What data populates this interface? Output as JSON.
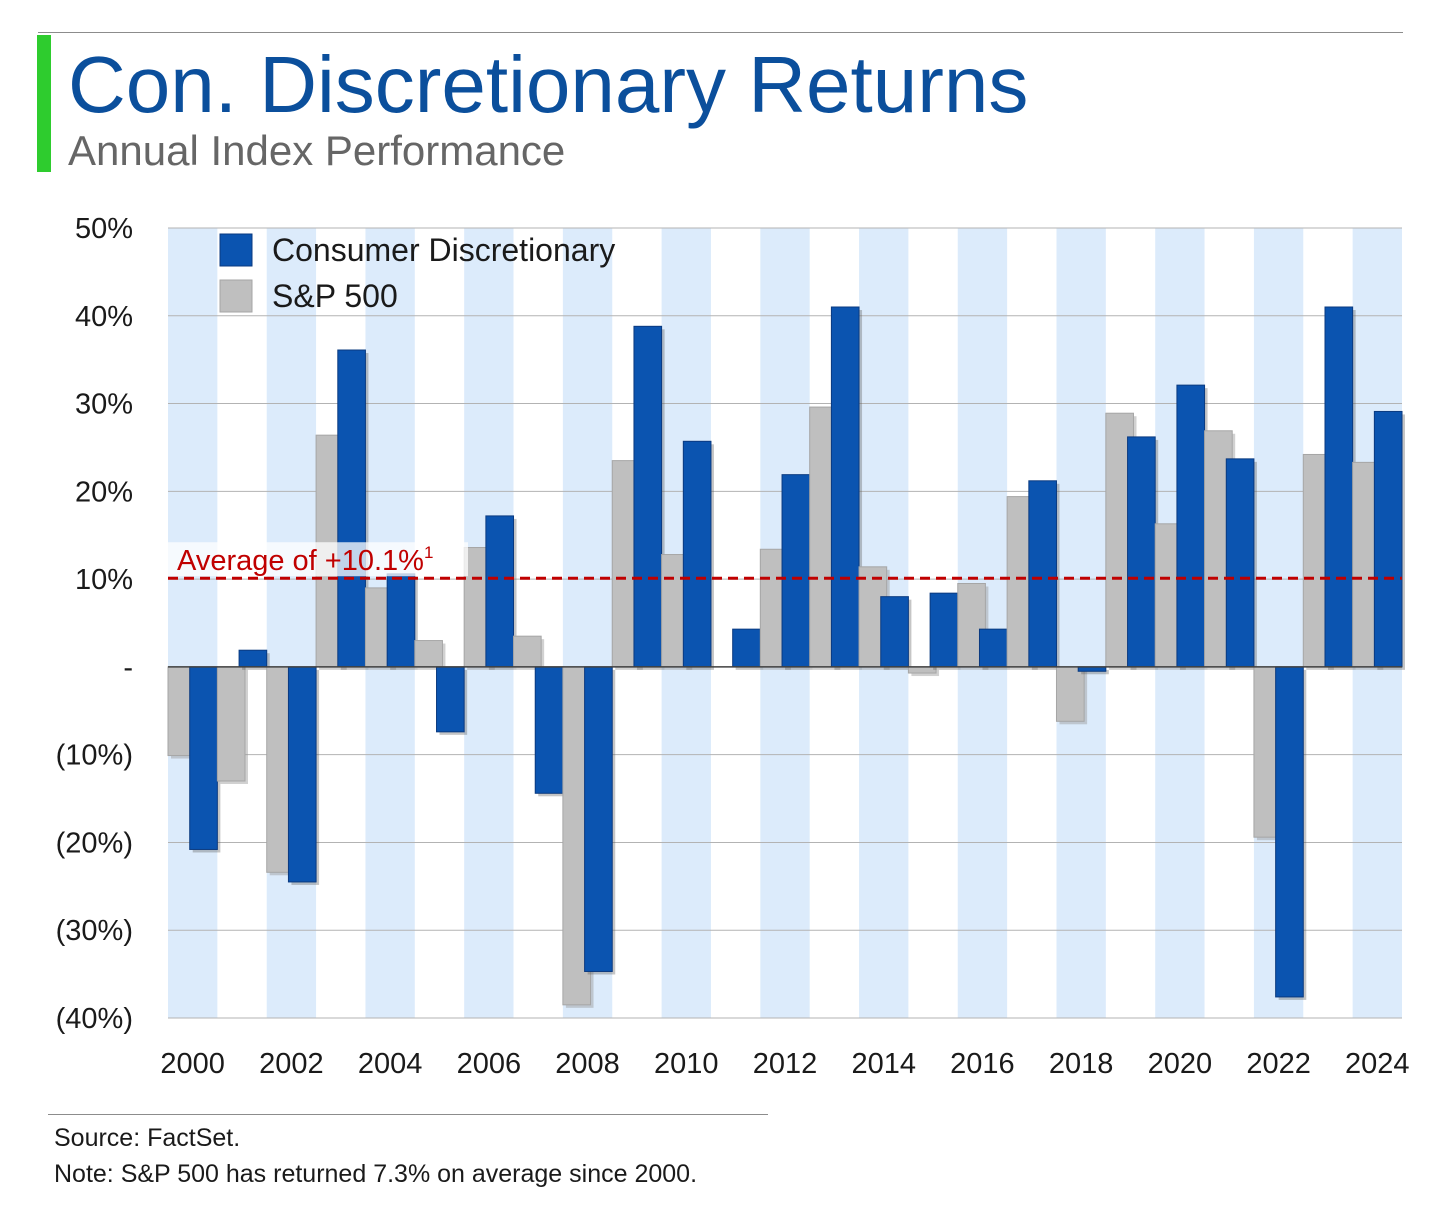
{
  "header": {
    "title": "Con. Discretionary Returns",
    "subtitle": "Annual Index Performance"
  },
  "colors": {
    "accent_bar": "#2ecc2e",
    "title": "#0b4f9c",
    "consumer_discretionary": "#0b54b0",
    "sp500": "#bfbfbf",
    "band": "#dcebfb",
    "average_line": "#c00000"
  },
  "chart_data": {
    "type": "bar",
    "categories": [
      "2000",
      "2001",
      "2002",
      "2003",
      "2004",
      "2005",
      "2006",
      "2007",
      "2008",
      "2009",
      "2010",
      "2011",
      "2012",
      "2013",
      "2014",
      "2015",
      "2016",
      "2017",
      "2018",
      "2019",
      "2020",
      "2021",
      "2022",
      "2023",
      "2024"
    ],
    "x_tick_labels": [
      "2000",
      "",
      "2002",
      "",
      "2004",
      "",
      "2006",
      "",
      "2008",
      "",
      "2010",
      "",
      "2012",
      "",
      "2014",
      "",
      "2016",
      "",
      "2018",
      "",
      "2020",
      "",
      "2022",
      "",
      "2024"
    ],
    "series": [
      {
        "name": "S&P 500",
        "values": [
          -10.1,
          -13.0,
          -23.4,
          26.4,
          9.0,
          3.0,
          13.6,
          3.5,
          -38.5,
          23.5,
          12.8,
          0.0,
          13.4,
          29.6,
          11.4,
          -0.7,
          9.5,
          19.4,
          -6.2,
          28.9,
          16.3,
          26.9,
          -19.4,
          24.2,
          23.3
        ]
      },
      {
        "name": "Consumer Discretionary",
        "values": [
          -20.8,
          1.9,
          -24.5,
          36.1,
          10.6,
          -7.4,
          17.2,
          -14.4,
          -34.7,
          38.8,
          25.7,
          4.3,
          21.9,
          41.0,
          8.0,
          8.4,
          4.3,
          21.2,
          -0.5,
          26.2,
          32.1,
          23.7,
          -37.6,
          41.0,
          29.1
        ]
      }
    ],
    "legend": [
      "Consumer Discretionary",
      "S&P 500"
    ],
    "legend_position": "top-left",
    "ylim": [
      -40,
      50
    ],
    "y_ticks": [
      50,
      40,
      30,
      20,
      10,
      0,
      -10,
      -20,
      -30,
      -40
    ],
    "y_tick_labels": [
      "50%",
      "40%",
      "30%",
      "20%",
      "10%",
      "-",
      "(10%)",
      "(20%)",
      "(30%)",
      "(40%)"
    ],
    "grid": true,
    "average": {
      "value": 10.1,
      "label": "Average of +10.1%",
      "footnote_mark": "1"
    }
  },
  "footer": {
    "source": "Source: FactSet.",
    "note": "Note: S&P 500 has returned 7.3% on average since 2000."
  }
}
